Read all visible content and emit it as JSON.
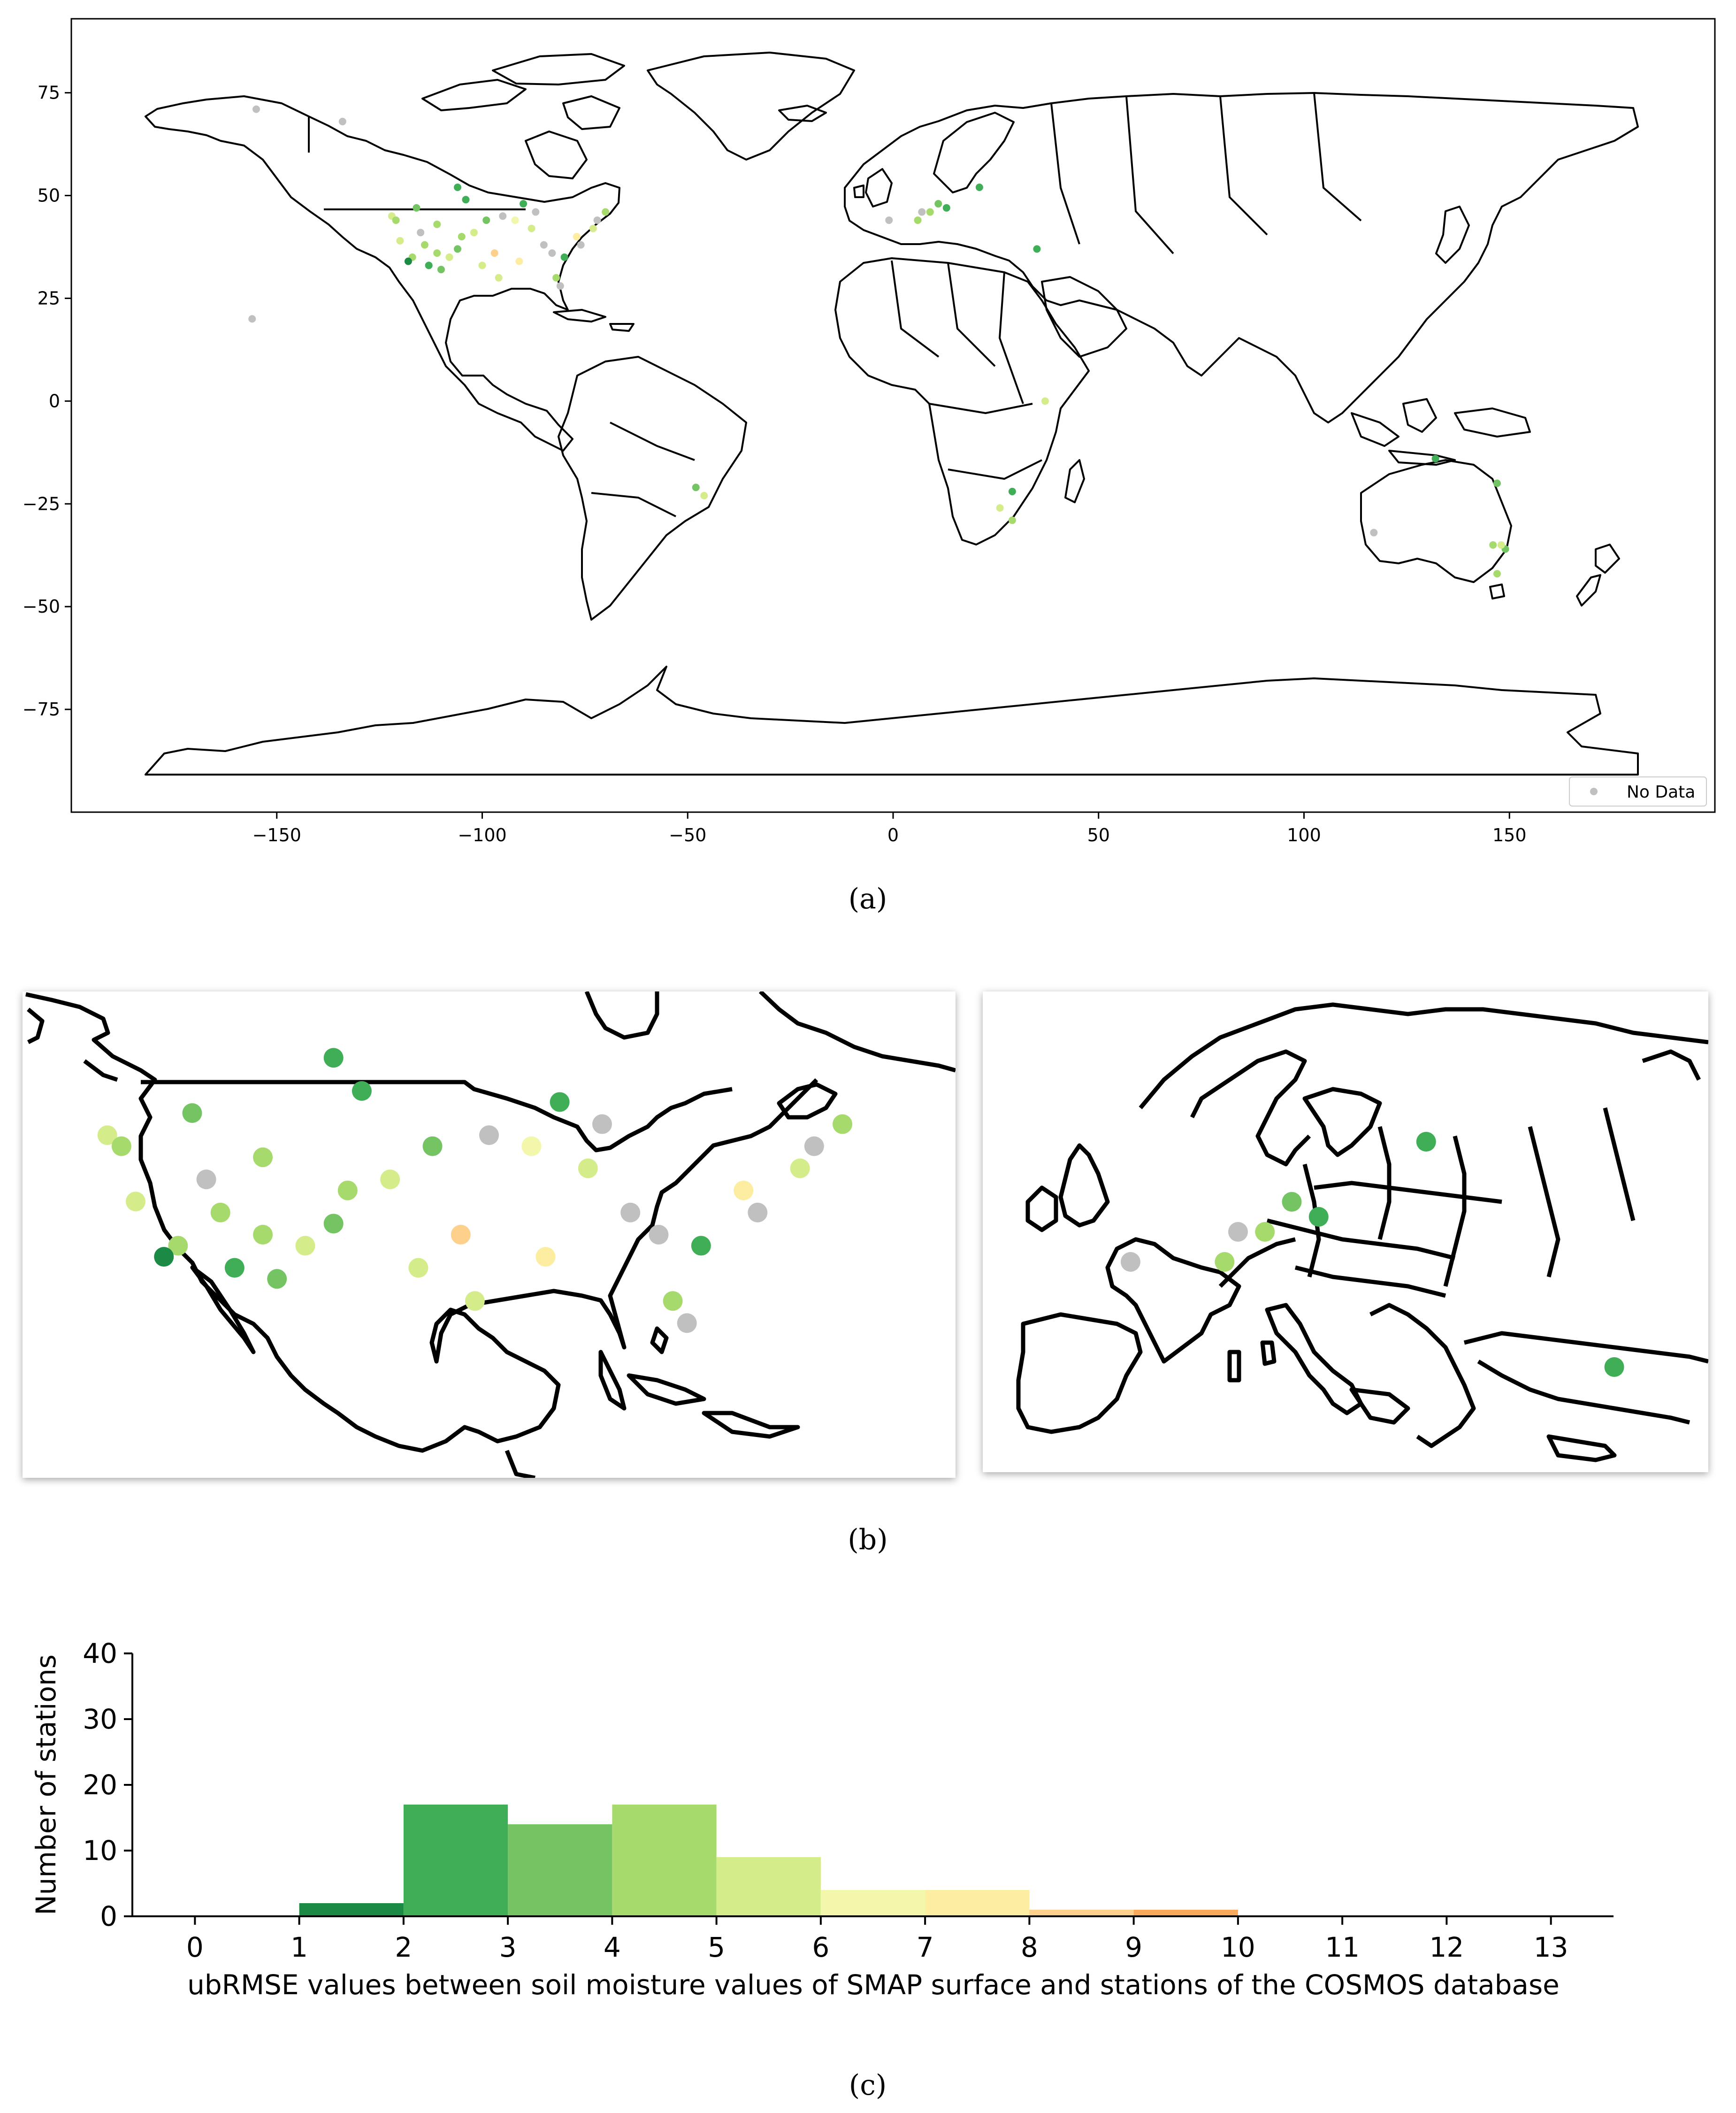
{
  "colors": {
    "no_data": "#c0c0c0",
    "bins": [
      "#1a8a44",
      "#3fae57",
      "#74c464",
      "#a7da6c",
      "#d4ec8a",
      "#f2f7ab",
      "#fdeda0",
      "#fdd08c",
      "#f9a95c"
    ]
  },
  "captions": {
    "a": "(a)",
    "b": "(b)",
    "c": "(c)"
  },
  "chart_data": [
    {
      "type": "scatter",
      "panel": "a",
      "xlim": [
        -200,
        200
      ],
      "ylim": [
        -100,
        93
      ],
      "xticks": [
        -150,
        -100,
        -50,
        0,
        50,
        100,
        150
      ],
      "yticks": [
        75,
        50,
        25,
        0,
        -25,
        -50,
        -75
      ],
      "xtick_labels": [
        "−150",
        "−100",
        "−50",
        "0",
        "50",
        "100",
        "150"
      ],
      "ytick_labels": [
        "75",
        "50",
        "25",
        "0",
        "−25",
        "−50",
        "−75"
      ],
      "legend": {
        "label": "No Data",
        "placement": "bottom-right"
      },
      "points": [
        {
          "x": -155,
          "y": 71,
          "c": 9
        },
        {
          "x": -134,
          "y": 68,
          "c": 9
        },
        {
          "x": -156,
          "y": 20,
          "c": 9
        },
        {
          "x": -122,
          "y": 45,
          "c": 4
        },
        {
          "x": -121,
          "y": 44,
          "c": 3
        },
        {
          "x": -117,
          "y": 35,
          "c": 3
        },
        {
          "x": -118,
          "y": 34,
          "c": 0
        },
        {
          "x": -120,
          "y": 39,
          "c": 4
        },
        {
          "x": -116,
          "y": 47,
          "c": 2
        },
        {
          "x": -111,
          "y": 43,
          "c": 3
        },
        {
          "x": -111,
          "y": 36,
          "c": 3
        },
        {
          "x": -113,
          "y": 33,
          "c": 1
        },
        {
          "x": -110,
          "y": 32,
          "c": 2
        },
        {
          "x": -106,
          "y": 52,
          "c": 1
        },
        {
          "x": -104,
          "y": 49,
          "c": 1
        },
        {
          "x": -99,
          "y": 44,
          "c": 2
        },
        {
          "x": -100,
          "y": 33,
          "c": 4
        },
        {
          "x": -106,
          "y": 37,
          "c": 2
        },
        {
          "x": -105,
          "y": 40,
          "c": 3
        },
        {
          "x": -102,
          "y": 41,
          "c": 4
        },
        {
          "x": -97,
          "y": 36,
          "c": 7
        },
        {
          "x": -91,
          "y": 34,
          "c": 6
        },
        {
          "x": -96,
          "y": 30,
          "c": 4
        },
        {
          "x": -90,
          "y": 48,
          "c": 1
        },
        {
          "x": -87,
          "y": 46,
          "c": 9
        },
        {
          "x": -92,
          "y": 44,
          "c": 5
        },
        {
          "x": -85,
          "y": 38,
          "c": 9
        },
        {
          "x": -83,
          "y": 36,
          "c": 9
        },
        {
          "x": -80,
          "y": 35,
          "c": 1
        },
        {
          "x": -82,
          "y": 30,
          "c": 3
        },
        {
          "x": -81,
          "y": 28,
          "c": 9
        },
        {
          "x": -77,
          "y": 40,
          "c": 6
        },
        {
          "x": -73,
          "y": 42,
          "c": 4
        },
        {
          "x": -70,
          "y": 46,
          "c": 3
        },
        {
          "x": -72,
          "y": 44,
          "c": 9
        },
        {
          "x": -76,
          "y": 38,
          "c": 9
        },
        {
          "x": -88,
          "y": 42,
          "c": 4
        },
        {
          "x": -95,
          "y": 45,
          "c": 9
        },
        {
          "x": -108,
          "y": 35,
          "c": 4
        },
        {
          "x": -115,
          "y": 41,
          "c": 9
        },
        {
          "x": -114,
          "y": 38,
          "c": 3
        },
        {
          "x": -1,
          "y": 44,
          "c": 9
        },
        {
          "x": 6,
          "y": 44,
          "c": 3
        },
        {
          "x": 7,
          "y": 46,
          "c": 9
        },
        {
          "x": 9,
          "y": 46,
          "c": 3
        },
        {
          "x": 11,
          "y": 48,
          "c": 2
        },
        {
          "x": 13,
          "y": 47,
          "c": 1
        },
        {
          "x": 21,
          "y": 52,
          "c": 1
        },
        {
          "x": 35,
          "y": 37,
          "c": 1
        },
        {
          "x": 37,
          "y": 0,
          "c": 4
        },
        {
          "x": -48,
          "y": -21,
          "c": 2
        },
        {
          "x": -46,
          "y": -23,
          "c": 4
        },
        {
          "x": 29,
          "y": -22,
          "c": 1
        },
        {
          "x": 26,
          "y": -26,
          "c": 4
        },
        {
          "x": 29,
          "y": -29,
          "c": 3
        },
        {
          "x": 132,
          "y": -14,
          "c": 1
        },
        {
          "x": 147,
          "y": -20,
          "c": 2
        },
        {
          "x": 146,
          "y": -35,
          "c": 3
        },
        {
          "x": 149,
          "y": -36,
          "c": 2
        },
        {
          "x": 148,
          "y": -35,
          "c": 4
        },
        {
          "x": 147,
          "y": -42,
          "c": 3
        },
        {
          "x": 117,
          "y": -32,
          "c": 9
        }
      ]
    },
    {
      "type": "scatter",
      "panel": "b",
      "views": [
        "north-america",
        "europe"
      ]
    },
    {
      "type": "bar",
      "panel": "c",
      "xlabel": "ubRMSE values between soil moisture values of SMAP surface and stations of the COSMOS database",
      "ylabel": "Number of stations",
      "xlim": [
        -0.6,
        13.6
      ],
      "ylim": [
        0,
        40
      ],
      "xticks": [
        0,
        1,
        2,
        3,
        4,
        5,
        6,
        7,
        8,
        9,
        10,
        11,
        12,
        13
      ],
      "yticks": [
        0,
        10,
        20,
        30,
        40
      ],
      "bins": [
        {
          "from": 1,
          "to": 2,
          "value": 2
        },
        {
          "from": 2,
          "to": 3,
          "value": 17
        },
        {
          "from": 3,
          "to": 4,
          "value": 14
        },
        {
          "from": 4,
          "to": 5,
          "value": 17
        },
        {
          "from": 5,
          "to": 6,
          "value": 9
        },
        {
          "from": 6,
          "to": 7,
          "value": 4
        },
        {
          "from": 7,
          "to": 8,
          "value": 4
        },
        {
          "from": 8,
          "to": 9,
          "value": 1
        },
        {
          "from": 9,
          "to": 10,
          "value": 1
        }
      ]
    }
  ]
}
